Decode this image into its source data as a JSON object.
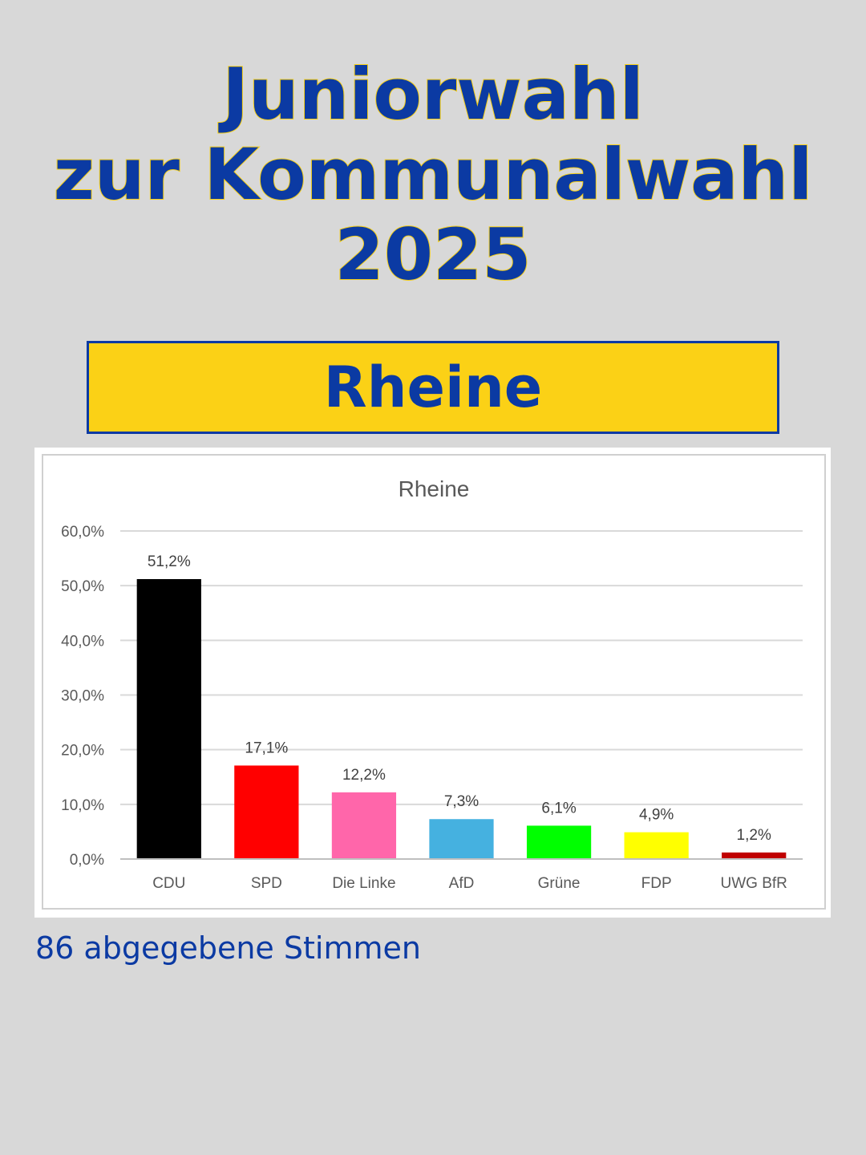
{
  "header": {
    "title_lines": [
      "Juniorwahl",
      "zur Kommunalwahl",
      "2025"
    ],
    "location": "Rheine"
  },
  "chart_data": {
    "type": "bar",
    "title": "Rheine",
    "xlabel": "",
    "ylabel": "",
    "categories": [
      "CDU",
      "SPD",
      "Die Linke",
      "AfD",
      "Grüne",
      "FDP",
      "UWG BfR"
    ],
    "values": [
      51.2,
      17.1,
      12.2,
      7.3,
      6.1,
      4.9,
      1.2
    ],
    "value_labels": [
      "51,2%",
      "17,1%",
      "12,2%",
      "7,3%",
      "6,1%",
      "4,9%",
      "1,2%"
    ],
    "colors": [
      "#000000",
      "#ff0000",
      "#ff66aa",
      "#45b1e0",
      "#00ff00",
      "#ffff00",
      "#c00000"
    ],
    "ylim": [
      0,
      60
    ],
    "yticks": [
      0,
      10,
      20,
      30,
      40,
      50,
      60
    ],
    "ytick_labels": [
      "0,0%",
      "10,0%",
      "20,0%",
      "30,0%",
      "40,0%",
      "50,0%",
      "60,0%"
    ],
    "grid": true,
    "legend": "none"
  },
  "footer": {
    "votes_text": "86 abgegebene Stimmen"
  }
}
